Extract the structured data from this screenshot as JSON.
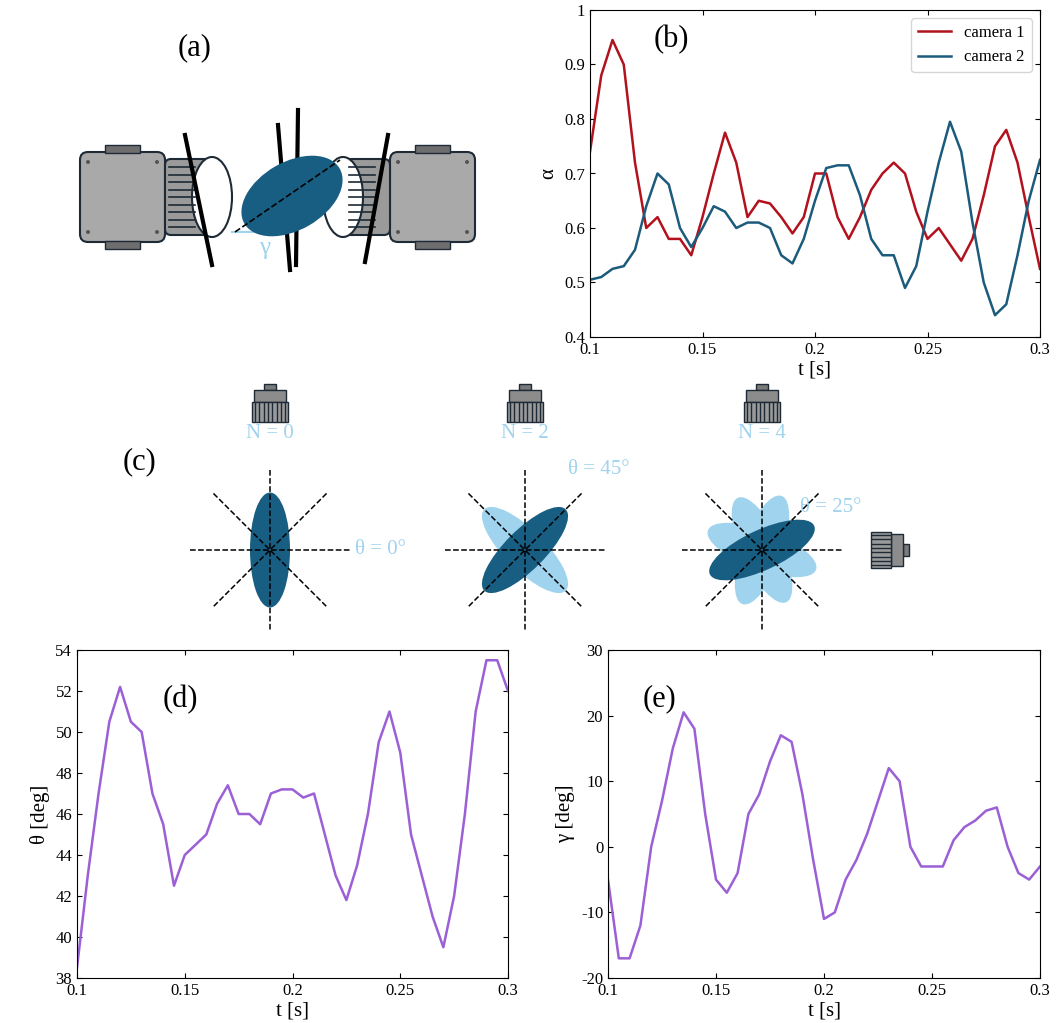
{
  "chart_data": [
    {
      "type": "line",
      "title": "(b)",
      "xlabel": "t [s]",
      "ylabel": "α",
      "x": [
        0.1,
        0.105,
        0.11,
        0.115,
        0.12,
        0.125,
        0.13,
        0.135,
        0.14,
        0.145,
        0.15,
        0.155,
        0.16,
        0.165,
        0.17,
        0.175,
        0.18,
        0.185,
        0.19,
        0.195,
        0.2,
        0.205,
        0.21,
        0.215,
        0.22,
        0.225,
        0.23,
        0.235,
        0.24,
        0.245,
        0.25,
        0.255,
        0.26,
        0.265,
        0.27,
        0.275,
        0.28,
        0.285,
        0.29,
        0.295,
        0.3
      ],
      "xlim": [
        0.1,
        0.3
      ],
      "xticks": [
        0.1,
        0.15,
        0.2,
        0.25,
        0.3
      ],
      "ylim": [
        0.4,
        1
      ],
      "yticks": [
        0.4,
        0.5,
        0.6,
        0.7,
        0.8,
        0.9,
        1
      ],
      "legend": "upper right",
      "series": [
        {
          "name": "camera 1",
          "color": "#b2121d",
          "values": [
            0.74,
            0.88,
            0.945,
            0.9,
            0.72,
            0.6,
            0.62,
            0.58,
            0.58,
            0.55,
            0.62,
            0.7,
            0.775,
            0.72,
            0.62,
            0.65,
            0.645,
            0.62,
            0.59,
            0.62,
            0.7,
            0.7,
            0.62,
            0.58,
            0.62,
            0.67,
            0.7,
            0.72,
            0.7,
            0.63,
            0.58,
            0.6,
            0.57,
            0.54,
            0.58,
            0.66,
            0.75,
            0.78,
            0.72,
            0.62,
            0.525
          ]
        },
        {
          "name": "camera 2",
          "color": "#1c5b7c",
          "values": [
            0.505,
            0.51,
            0.525,
            0.53,
            0.56,
            0.64,
            0.7,
            0.68,
            0.6,
            0.565,
            0.6,
            0.64,
            0.63,
            0.6,
            0.61,
            0.61,
            0.6,
            0.55,
            0.535,
            0.58,
            0.65,
            0.71,
            0.715,
            0.715,
            0.66,
            0.58,
            0.55,
            0.55,
            0.49,
            0.53,
            0.63,
            0.72,
            0.795,
            0.74,
            0.61,
            0.5,
            0.44,
            0.46,
            0.55,
            0.65,
            0.725
          ]
        }
      ]
    },
    {
      "type": "line",
      "title": "(d)",
      "xlabel": "t [s]",
      "ylabel": "θ [deg]",
      "x": [
        0.1,
        0.105,
        0.11,
        0.115,
        0.12,
        0.125,
        0.13,
        0.135,
        0.14,
        0.145,
        0.15,
        0.155,
        0.16,
        0.165,
        0.17,
        0.175,
        0.18,
        0.185,
        0.19,
        0.195,
        0.2,
        0.205,
        0.21,
        0.215,
        0.22,
        0.225,
        0.23,
        0.235,
        0.24,
        0.245,
        0.25,
        0.255,
        0.26,
        0.265,
        0.27,
        0.275,
        0.28,
        0.285,
        0.29,
        0.295,
        0.3
      ],
      "xlim": [
        0.1,
        0.3
      ],
      "xticks": [
        0.1,
        0.15,
        0.2,
        0.25,
        0.3
      ],
      "ylim": [
        38,
        54
      ],
      "yticks": [
        38,
        40,
        42,
        44,
        46,
        48,
        50,
        52,
        54
      ],
      "series": [
        {
          "color": "#9b5fd6",
          "values": [
            38.5,
            43,
            47,
            50.5,
            52.2,
            50.5,
            50,
            47,
            45.5,
            42.5,
            44,
            44.5,
            45,
            46.5,
            47.4,
            46,
            46,
            45.5,
            47,
            47.2,
            47.2,
            46.8,
            47,
            45,
            43,
            41.8,
            43.5,
            46,
            49.5,
            51,
            49,
            45,
            43,
            41,
            39.5,
            42,
            46,
            51,
            53.5,
            53.5,
            52
          ]
        }
      ]
    },
    {
      "type": "line",
      "title": "(e)",
      "xlabel": "t [s]",
      "ylabel": "γ [deg]",
      "x": [
        0.1,
        0.105,
        0.11,
        0.115,
        0.12,
        0.125,
        0.13,
        0.135,
        0.14,
        0.145,
        0.15,
        0.155,
        0.16,
        0.165,
        0.17,
        0.175,
        0.18,
        0.185,
        0.19,
        0.195,
        0.2,
        0.205,
        0.21,
        0.215,
        0.22,
        0.225,
        0.23,
        0.235,
        0.24,
        0.245,
        0.25,
        0.255,
        0.26,
        0.265,
        0.27,
        0.275,
        0.28,
        0.285,
        0.29,
        0.295,
        0.3
      ],
      "xlim": [
        0.1,
        0.3
      ],
      "xticks": [
        0.1,
        0.15,
        0.2,
        0.25,
        0.3
      ],
      "ylim": [
        -20,
        30
      ],
      "yticks": [
        -20,
        -10,
        0,
        10,
        20,
        30
      ],
      "series": [
        {
          "color": "#9b5fd6",
          "values": [
            -5,
            -17,
            -17,
            -12,
            0,
            7,
            15,
            20.5,
            18,
            5,
            -5,
            -7,
            -4,
            5,
            8,
            13,
            17,
            16,
            8,
            -2,
            -11,
            -10,
            -5,
            -2,
            2,
            7,
            12,
            10,
            0,
            -3,
            -3,
            -3,
            1,
            3,
            4,
            5.5,
            6,
            0,
            -4,
            -5,
            -3
          ]
        }
      ]
    }
  ],
  "diagrams": {
    "a": {
      "label": "(a)",
      "angle_label": "γ"
    },
    "c": {
      "label": "(c)",
      "panels": [
        {
          "N": {
            "label": "N = 0",
            "value": 0
          },
          "theta": {
            "label": "θ = 0°",
            "value": 0
          }
        },
        {
          "N": {
            "label": "N = 2",
            "value": 2
          },
          "theta": {
            "label": "θ = 45°",
            "value": 45
          }
        },
        {
          "N": {
            "label": "N = 4",
            "value": 4
          },
          "theta": {
            "label": "θ = 25°",
            "value": 25
          }
        }
      ]
    }
  }
}
